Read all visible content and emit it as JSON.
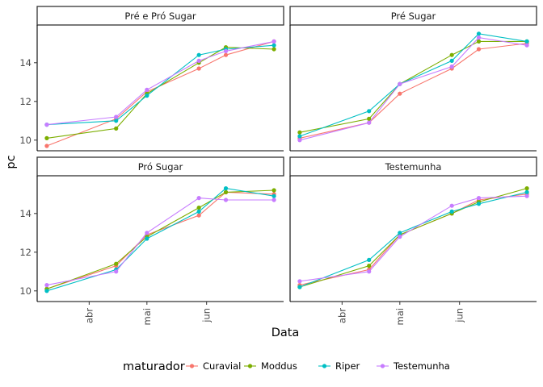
{
  "chart_data": {
    "type": "line",
    "xlabel": "Data",
    "ylabel": "pc",
    "x": [
      "2021-03-10",
      "2021-04-15",
      "2021-05-01",
      "2021-05-28",
      "2021-06-11",
      "2021-07-06"
    ],
    "x_ticks": [
      {
        "label": "abr",
        "date": "2021-04-01"
      },
      {
        "label": "mai",
        "date": "2021-05-01"
      },
      {
        "label": "jun",
        "date": "2021-06-01"
      }
    ],
    "xlim": [
      "2021-03-05",
      "2021-07-11"
    ],
    "ylim": [
      9.45,
      15.95
    ],
    "y_ticks": [
      10,
      12,
      14
    ],
    "legend": {
      "title": "maturador",
      "position": "bottom",
      "entries": [
        "Curavial",
        "Moddus",
        "Riper",
        "Testemunha"
      ]
    },
    "colors": {
      "Curavial": "#F8766D",
      "Moddus": "#7CAE00",
      "Riper": "#00BFC4",
      "Testemunha": "#C77CFF"
    },
    "panels": [
      {
        "title": "Pré e Pró Sugar",
        "series": [
          {
            "name": "Curavial",
            "values": [
              9.7,
              11.1,
              12.5,
              13.7,
              14.4,
              15.1
            ]
          },
          {
            "name": "Moddus",
            "values": [
              10.1,
              10.6,
              12.4,
              14.0,
              14.8,
              14.7
            ]
          },
          {
            "name": "Riper",
            "values": [
              10.8,
              11.0,
              12.3,
              14.4,
              14.7,
              14.9
            ]
          },
          {
            "name": "Testemunha",
            "values": [
              10.8,
              11.2,
              12.6,
              14.1,
              14.6,
              15.1
            ]
          }
        ]
      },
      {
        "title": "Pré Sugar",
        "series": [
          {
            "name": "Curavial",
            "values": [
              10.1,
              10.9,
              12.4,
              13.7,
              14.7,
              15.0
            ]
          },
          {
            "name": "Moddus",
            "values": [
              10.4,
              11.1,
              12.9,
              14.4,
              15.1,
              15.1
            ]
          },
          {
            "name": "Riper",
            "values": [
              10.2,
              11.5,
              12.9,
              14.1,
              15.5,
              15.1
            ]
          },
          {
            "name": "Testemunha",
            "values": [
              10.0,
              10.9,
              12.9,
              13.8,
              15.3,
              14.9
            ]
          }
        ]
      },
      {
        "title": "Pró Sugar",
        "series": [
          {
            "name": "Curavial",
            "values": [
              10.1,
              11.3,
              12.9,
              13.9,
              15.1,
              15.0
            ]
          },
          {
            "name": "Moddus",
            "values": [
              10.1,
              11.4,
              12.8,
              14.3,
              15.1,
              15.2
            ]
          },
          {
            "name": "Riper",
            "values": [
              10.0,
              11.1,
              12.7,
              14.1,
              15.3,
              14.9
            ]
          },
          {
            "name": "Testemunha",
            "values": [
              10.3,
              11.0,
              13.0,
              14.8,
              14.7,
              14.7
            ]
          }
        ]
      },
      {
        "title": "Testemunha",
        "series": [
          {
            "name": "Curavial",
            "values": [
              10.3,
              11.1,
              12.9,
              14.0,
              14.7,
              15.0
            ]
          },
          {
            "name": "Moddus",
            "values": [
              10.2,
              11.3,
              12.9,
              14.0,
              14.6,
              15.3
            ]
          },
          {
            "name": "Riper",
            "values": [
              10.2,
              11.6,
              13.0,
              14.1,
              14.5,
              15.1
            ]
          },
          {
            "name": "Testemunha",
            "values": [
              10.5,
              11.0,
              12.8,
              14.4,
              14.8,
              14.9
            ]
          }
        ]
      }
    ]
  }
}
